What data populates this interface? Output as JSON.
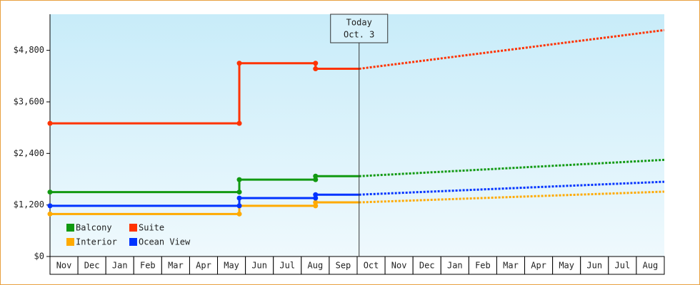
{
  "chart_data": {
    "type": "line",
    "xlim": [
      0,
      22
    ],
    "xticks": [
      {
        "value": 0.5,
        "label": "Nov"
      },
      {
        "value": 1.5,
        "label": "Dec"
      },
      {
        "value": 2.5,
        "label": "Jan"
      },
      {
        "value": 3.5,
        "label": "Feb"
      },
      {
        "value": 4.5,
        "label": "Mar"
      },
      {
        "value": 5.5,
        "label": "Apr"
      },
      {
        "value": 6.5,
        "label": "May"
      },
      {
        "value": 7.5,
        "label": "Jun"
      },
      {
        "value": 8.5,
        "label": "Jul"
      },
      {
        "value": 9.5,
        "label": "Aug"
      },
      {
        "value": 10.5,
        "label": "Sep"
      },
      {
        "value": 11.5,
        "label": "Oct"
      },
      {
        "value": 12.5,
        "label": "Nov"
      },
      {
        "value": 13.5,
        "label": "Dec"
      },
      {
        "value": 14.5,
        "label": "Jan"
      },
      {
        "value": 15.5,
        "label": "Feb"
      },
      {
        "value": 16.5,
        "label": "Mar"
      },
      {
        "value": 17.5,
        "label": "Apr"
      },
      {
        "value": 18.5,
        "label": "May"
      },
      {
        "value": 19.5,
        "label": "Jun"
      },
      {
        "value": 20.5,
        "label": "Jul"
      },
      {
        "value": 21.5,
        "label": "Aug"
      }
    ],
    "ylim": [
      0,
      5640
    ],
    "yticks": [
      {
        "value": 0,
        "label": "$0"
      },
      {
        "value": 1200,
        "label": "$1,200"
      },
      {
        "value": 2400,
        "label": "$2,400"
      },
      {
        "value": 3600,
        "label": "$3,600"
      },
      {
        "value": 4800,
        "label": "$4,800"
      }
    ],
    "annotation": {
      "x": 11.07,
      "label": [
        "Today",
        "Oct. 3"
      ]
    },
    "legend": "bottom-left",
    "series": [
      {
        "name": "Balcony",
        "color": "#119911",
        "x": [
          0,
          6.78,
          6.78,
          9.51,
          9.51,
          11.07
        ],
        "values": [
          1500,
          1500,
          1790,
          1790,
          1870,
          1870
        ],
        "forecast_x": [
          11.07,
          22
        ],
        "forecast": [
          1870,
          2250
        ]
      },
      {
        "name": "Suite",
        "color": "#ff3300",
        "x": [
          0,
          6.78,
          6.78,
          9.51,
          9.51,
          11.07
        ],
        "values": [
          3100,
          3100,
          4500,
          4500,
          4370,
          4370
        ],
        "forecast_x": [
          11.07,
          22
        ],
        "forecast": [
          4370,
          5270
        ]
      },
      {
        "name": "Interior",
        "color": "#ffaa00",
        "x": [
          0,
          6.78,
          6.78,
          9.51,
          9.51,
          11.07
        ],
        "values": [
          990,
          990,
          1180,
          1180,
          1260,
          1260
        ],
        "forecast_x": [
          11.07,
          22
        ],
        "forecast": [
          1260,
          1510
        ]
      },
      {
        "name": "Ocean View",
        "color": "#0033ff",
        "x": [
          0,
          6.78,
          6.78,
          9.51,
          9.51,
          11.07
        ],
        "values": [
          1180,
          1180,
          1360,
          1360,
          1440,
          1440
        ],
        "forecast_x": [
          11.07,
          22
        ],
        "forecast": [
          1440,
          1740
        ]
      }
    ]
  }
}
